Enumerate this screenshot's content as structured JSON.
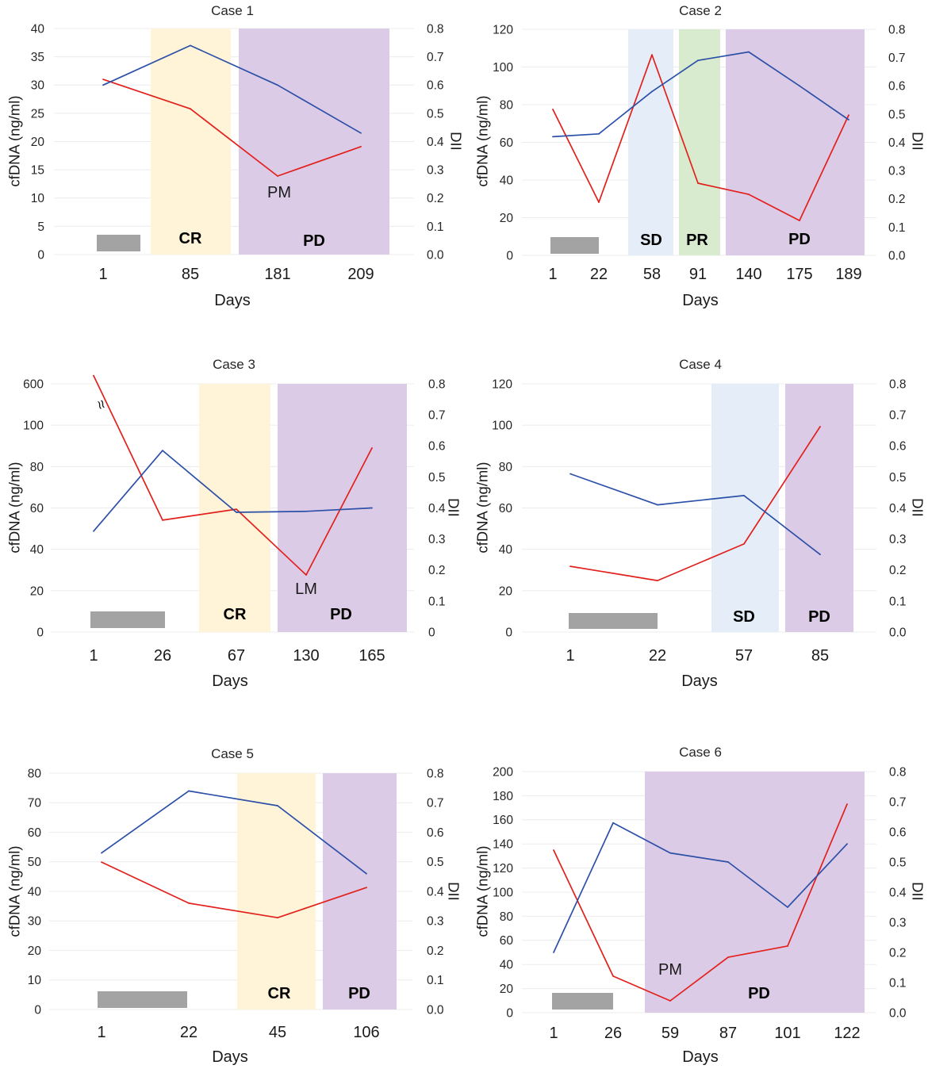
{
  "colors": {
    "cfdna_line": "#e2201c",
    "dii_line": "#2c50a8",
    "treatment_bar": "#a3a3a3",
    "gridline": "#ececec"
  },
  "chart_data": [
    {
      "type": "line",
      "title": "Case 1",
      "xlabel": "Days",
      "ylabel": "cfDNA (ng/ml)",
      "y2label": "DII",
      "categories": [
        "1",
        "85",
        "181",
        "209"
      ],
      "ylim": [
        0,
        40
      ],
      "yticks": [
        "0",
        "5",
        "10",
        "15",
        "20",
        "25",
        "30",
        "35",
        "40"
      ],
      "y2lim": [
        0,
        0.8
      ],
      "y2ticks": [
        "0.0",
        "0.1",
        "0.2",
        "0.3",
        "0.4",
        "0.5",
        "0.6",
        "0.7",
        "0.8"
      ],
      "cfdna": [
        31.0,
        25.8,
        13.9,
        19.1
      ],
      "dii": [
        0.6,
        0.74,
        0.6,
        0.43
      ],
      "phases": [
        {
          "label": "CR",
          "color": "#fff3d8"
        },
        {
          "label": "PD",
          "color": "#dccbe6"
        }
      ],
      "annotations": [
        "PM"
      ],
      "grid": true
    },
    {
      "type": "line",
      "title": "Case 2",
      "xlabel": "Days",
      "ylabel": "cfDNA (ng/ml)",
      "y2label": "DII",
      "categories": [
        "1",
        "22",
        "58",
        "91",
        "140",
        "175",
        "189"
      ],
      "ylim": [
        0,
        120
      ],
      "yticks": [
        "0",
        "20",
        "40",
        "60",
        "80",
        "100",
        "120"
      ],
      "y2lim": [
        0,
        0.8
      ],
      "y2ticks": [
        "0.0",
        "0.1",
        "0.2",
        "0.3",
        "0.4",
        "0.5",
        "0.6",
        "0.7",
        "0.8"
      ],
      "cfdna": [
        77.5,
        28.2,
        106.5,
        38.3,
        32.4,
        18.5,
        74.5
      ],
      "dii": [
        0.42,
        0.43,
        0.58,
        0.69,
        0.72,
        0.6,
        0.48
      ],
      "phases": [
        {
          "label": "SD",
          "color": "#e5eef8"
        },
        {
          "label": "PR",
          "color": "#d8ebcf"
        },
        {
          "label": "PD",
          "color": "#dccbe6"
        }
      ],
      "annotations": [],
      "grid": true
    },
    {
      "type": "line",
      "title": "Case 3",
      "xlabel": "Days",
      "ylabel": "cfDNA (ng/ml)",
      "y2label": "DII",
      "categories": [
        "1",
        "26",
        "67",
        "130",
        "165"
      ],
      "ylim": [
        0,
        600
      ],
      "axis_break": [
        100,
        600
      ],
      "break_symbol": "≈",
      "yticks": [
        "0",
        "20",
        "40",
        "60",
        "80",
        "100",
        "600"
      ],
      "y2lim": [
        0,
        0.8
      ],
      "y2ticks": [
        "0",
        "0.1",
        "0.2",
        "0.3",
        "0.4",
        "0.5",
        "0.6",
        "0.7",
        "0.8"
      ],
      "cfdna": [
        700,
        54.1,
        59.4,
        27.6,
        89.0
      ],
      "dii": [
        0.325,
        0.585,
        0.386,
        0.389,
        0.4
      ],
      "phases": [
        {
          "label": "CR",
          "color": "#fff3d8"
        },
        {
          "label": "PD",
          "color": "#dccbe6"
        }
      ],
      "annotations": [
        "LM"
      ],
      "grid": true
    },
    {
      "type": "line",
      "title": "Case 4",
      "xlabel": "Days",
      "ylabel": "cfDNA (ng/ml)",
      "y2label": "DII",
      "categories": [
        "1",
        "22",
        "57",
        "85"
      ],
      "ylim": [
        0,
        120
      ],
      "yticks": [
        "0",
        "20",
        "40",
        "60",
        "80",
        "100",
        "120"
      ],
      "y2lim": [
        0,
        0.8
      ],
      "y2ticks": [
        "0.0",
        "0.1",
        "0.2",
        "0.3",
        "0.4",
        "0.5",
        "0.6",
        "0.7",
        "0.8"
      ],
      "cfdna": [
        31.8,
        24.9,
        42.6,
        99.3
      ],
      "dii": [
        0.51,
        0.41,
        0.44,
        0.25
      ],
      "phases": [
        {
          "label": "SD",
          "color": "#e5eef8"
        },
        {
          "label": "PD",
          "color": "#dccbe6"
        }
      ],
      "annotations": [],
      "grid": true
    },
    {
      "type": "line",
      "title": "Case 5",
      "xlabel": "Days",
      "ylabel": "cfDNA (ng/ml)",
      "y2label": "DII",
      "categories": [
        "1",
        "22",
        "45",
        "106"
      ],
      "ylim": [
        0,
        80
      ],
      "yticks": [
        "0",
        "10",
        "20",
        "30",
        "40",
        "50",
        "60",
        "70",
        "80"
      ],
      "y2lim": [
        0,
        0.8
      ],
      "y2ticks": [
        "0.0",
        "0.1",
        "0.2",
        "0.3",
        "0.4",
        "0.5",
        "0.6",
        "0.7",
        "0.8"
      ],
      "cfdna": [
        49.9,
        36.0,
        31.1,
        41.3
      ],
      "dii": [
        0.53,
        0.74,
        0.69,
        0.46
      ],
      "phases": [
        {
          "label": "CR",
          "color": "#fff3d8"
        },
        {
          "label": "PD",
          "color": "#dccbe6"
        }
      ],
      "annotations": [],
      "grid": true
    },
    {
      "type": "line",
      "title": "Case 6",
      "xlabel": "Days",
      "ylabel": "cfDNA (ng/ml)",
      "y2label": "DII",
      "categories": [
        "1",
        "26",
        "59",
        "87",
        "101",
        "122"
      ],
      "ylim": [
        0,
        200
      ],
      "yticks": [
        "0",
        "20",
        "40",
        "60",
        "80",
        "100",
        "120",
        "140",
        "160",
        "180",
        "200"
      ],
      "y2lim": [
        0,
        0.8
      ],
      "y2ticks": [
        "0.0",
        "0.1",
        "0.2",
        "0.3",
        "0.4",
        "0.5",
        "0.6",
        "0.7",
        "0.8"
      ],
      "cfdna": [
        134.9,
        30.3,
        9.9,
        46.0,
        55.3,
        173.0
      ],
      "dii": [
        0.2,
        0.63,
        0.53,
        0.5,
        0.35,
        0.56
      ],
      "phases": [
        {
          "label": "PD",
          "color": "#dccbe6"
        }
      ],
      "annotations": [
        "PM"
      ],
      "grid": true
    }
  ]
}
